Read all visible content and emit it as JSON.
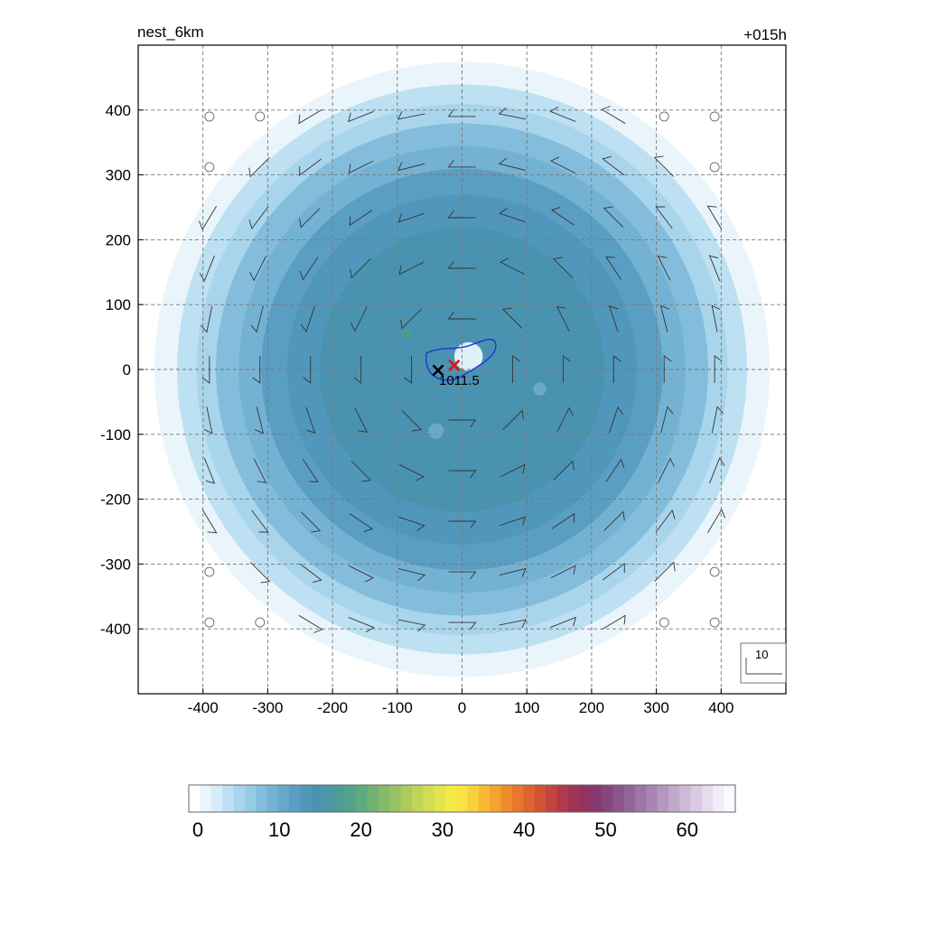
{
  "chart_data": {
    "type": "heatmap",
    "title_left": "nest_6km",
    "title_right": "+015h",
    "xlim": [
      -500,
      500
    ],
    "ylim": [
      -500,
      500
    ],
    "x_ticks": [
      "-400",
      "-300",
      "-200",
      "-100",
      "0",
      "100",
      "200",
      "300",
      "400"
    ],
    "y_ticks": [
      "400",
      "300",
      "200",
      "100",
      "0",
      "-100",
      "-200",
      "-300",
      "-400"
    ],
    "grid": true,
    "grid_spacing": 100,
    "field": {
      "shape": "circular vortex",
      "center": [
        0,
        0
      ],
      "levels": [
        {
          "radius": 475,
          "value": 2
        },
        {
          "radius": 440,
          "value": 4
        },
        {
          "radius": 410,
          "value": 6
        },
        {
          "radius": 380,
          "value": 8
        },
        {
          "radius": 345,
          "value": 10
        },
        {
          "radius": 310,
          "value": 12
        },
        {
          "radius": 270,
          "value": 14
        },
        {
          "radius": 220,
          "value": 15
        }
      ]
    },
    "contour_label": "1011.5",
    "contour_color": "#1a35d4",
    "markers": [
      {
        "name": "analysis-center",
        "symbol": "×",
        "color": "#000000",
        "x": -37,
        "y": 0
      },
      {
        "name": "track-center",
        "symbol": "×",
        "color": "#e01010",
        "x": -12,
        "y": 8
      }
    ],
    "wind_reference_label": "10",
    "colorbar": {
      "ticks": [
        "0",
        "10",
        "20",
        "30",
        "40",
        "50",
        "60"
      ],
      "min": 0,
      "max": 67,
      "colors": [
        "#ffffff",
        "#eaf5fb",
        "#d4ecf7",
        "#bde0f2",
        "#a9d5ec",
        "#96cbe5",
        "#84bddb",
        "#74b2d3",
        "#66a8cb",
        "#5b9ec4",
        "#5197bb",
        "#4a93b0",
        "#4a97a5",
        "#4c9c97",
        "#52a38a",
        "#5fab7e",
        "#70b273",
        "#84ba6a",
        "#98c262",
        "#accb5c",
        "#c0d458",
        "#d3dc52",
        "#e4e44d",
        "#f3ea48",
        "#f8e246",
        "#f9cf3e",
        "#f8b934",
        "#f5a22e",
        "#ef8c2b",
        "#e7772c",
        "#dd642e",
        "#d15335",
        "#c2453f",
        "#b13a4a",
        "#a03354",
        "#90335f",
        "#86396c",
        "#86457b",
        "#8b548a",
        "#936498",
        "#9d75a6",
        "#a886b3",
        "#b497bf",
        "#c1a9cb",
        "#cdbad7",
        "#dacbe2",
        "#e6dced",
        "#f1ecf6",
        "#fbf9fd"
      ]
    }
  }
}
